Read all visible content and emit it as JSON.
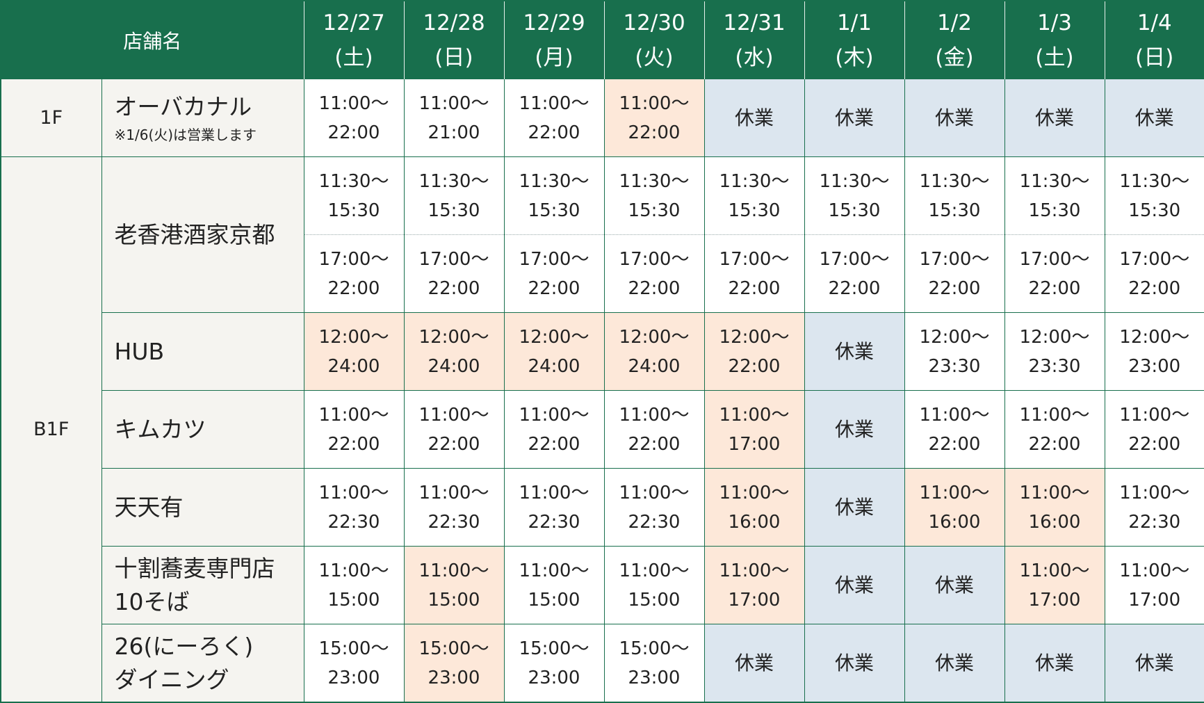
{
  "header": {
    "store_label": "店舗名"
  },
  "dates": [
    {
      "date": "12/27",
      "dow": "(土)"
    },
    {
      "date": "12/28",
      "dow": "(日)"
    },
    {
      "date": "12/29",
      "dow": "(月)"
    },
    {
      "date": "12/30",
      "dow": "(火)"
    },
    {
      "date": "12/31",
      "dow": "(水)"
    },
    {
      "date": "1/1",
      "dow": "(木)"
    },
    {
      "date": "1/2",
      "dow": "(金)"
    },
    {
      "date": "1/3",
      "dow": "(土)"
    },
    {
      "date": "1/4",
      "dow": "(日)"
    }
  ],
  "colors": {
    "header": "#186f4d",
    "special": "#fde8d9",
    "closed": "#dce6ef",
    "label_bg": "#f5f4f0"
  },
  "floors": [
    {
      "floor": "1F",
      "stores": [
        {
          "name": "オーバカナル",
          "note": "※1/6(火)は営業します",
          "slots": [
            [
              {
                "s": "normal",
                "t": [
                  "11:00～",
                  "22:00"
                ]
              },
              {
                "s": "normal",
                "t": [
                  "11:00～",
                  "21:00"
                ]
              },
              {
                "s": "normal",
                "t": [
                  "11:00～",
                  "22:00"
                ]
              },
              {
                "s": "special",
                "t": [
                  "11:00～",
                  "22:00"
                ]
              },
              {
                "s": "closed",
                "t": [
                  "休業"
                ]
              },
              {
                "s": "closed",
                "t": [
                  "休業"
                ]
              },
              {
                "s": "closed",
                "t": [
                  "休業"
                ]
              },
              {
                "s": "closed",
                "t": [
                  "休業"
                ]
              },
              {
                "s": "closed",
                "t": [
                  "休業"
                ]
              }
            ]
          ]
        }
      ]
    },
    {
      "floor": "B1F",
      "stores": [
        {
          "name": "老香港酒家京都",
          "slots": [
            [
              {
                "s": "normal",
                "t": [
                  "11:30～",
                  "15:30"
                ]
              },
              {
                "s": "normal",
                "t": [
                  "11:30～",
                  "15:30"
                ]
              },
              {
                "s": "normal",
                "t": [
                  "11:30～",
                  "15:30"
                ]
              },
              {
                "s": "normal",
                "t": [
                  "11:30～",
                  "15:30"
                ]
              },
              {
                "s": "normal",
                "t": [
                  "11:30～",
                  "15:30"
                ]
              },
              {
                "s": "normal",
                "t": [
                  "11:30～",
                  "15:30"
                ]
              },
              {
                "s": "normal",
                "t": [
                  "11:30～",
                  "15:30"
                ]
              },
              {
                "s": "normal",
                "t": [
                  "11:30～",
                  "15:30"
                ]
              },
              {
                "s": "normal",
                "t": [
                  "11:30～",
                  "15:30"
                ]
              }
            ],
            [
              {
                "s": "normal",
                "t": [
                  "17:00～",
                  "22:00"
                ]
              },
              {
                "s": "normal",
                "t": [
                  "17:00～",
                  "22:00"
                ]
              },
              {
                "s": "normal",
                "t": [
                  "17:00～",
                  "22:00"
                ]
              },
              {
                "s": "normal",
                "t": [
                  "17:00～",
                  "22:00"
                ]
              },
              {
                "s": "normal",
                "t": [
                  "17:00～",
                  "22:00"
                ]
              },
              {
                "s": "normal",
                "t": [
                  "17:00～",
                  "22:00"
                ]
              },
              {
                "s": "normal",
                "t": [
                  "17:00～",
                  "22:00"
                ]
              },
              {
                "s": "normal",
                "t": [
                  "17:00～",
                  "22:00"
                ]
              },
              {
                "s": "normal",
                "t": [
                  "17:00～",
                  "22:00"
                ]
              }
            ]
          ]
        },
        {
          "name": "HUB",
          "slots": [
            [
              {
                "s": "special",
                "t": [
                  "12:00～",
                  "24:00"
                ]
              },
              {
                "s": "special",
                "t": [
                  "12:00～",
                  "24:00"
                ]
              },
              {
                "s": "special",
                "t": [
                  "12:00～",
                  "24:00"
                ]
              },
              {
                "s": "special",
                "t": [
                  "12:00～",
                  "24:00"
                ]
              },
              {
                "s": "special",
                "t": [
                  "12:00～",
                  "22:00"
                ]
              },
              {
                "s": "closed",
                "t": [
                  "休業"
                ]
              },
              {
                "s": "normal",
                "t": [
                  "12:00～",
                  "23:30"
                ]
              },
              {
                "s": "normal",
                "t": [
                  "12:00～",
                  "23:30"
                ]
              },
              {
                "s": "normal",
                "t": [
                  "12:00～",
                  "23:00"
                ]
              }
            ]
          ]
        },
        {
          "name": "キムカツ",
          "slots": [
            [
              {
                "s": "normal",
                "t": [
                  "11:00～",
                  "22:00"
                ]
              },
              {
                "s": "normal",
                "t": [
                  "11:00～",
                  "22:00"
                ]
              },
              {
                "s": "normal",
                "t": [
                  "11:00～",
                  "22:00"
                ]
              },
              {
                "s": "normal",
                "t": [
                  "11:00～",
                  "22:00"
                ]
              },
              {
                "s": "special",
                "t": [
                  "11:00～",
                  "17:00"
                ]
              },
              {
                "s": "closed",
                "t": [
                  "休業"
                ]
              },
              {
                "s": "normal",
                "t": [
                  "11:00～",
                  "22:00"
                ]
              },
              {
                "s": "normal",
                "t": [
                  "11:00～",
                  "22:00"
                ]
              },
              {
                "s": "normal",
                "t": [
                  "11:00～",
                  "22:00"
                ]
              }
            ]
          ]
        },
        {
          "name": "天天有",
          "slots": [
            [
              {
                "s": "normal",
                "t": [
                  "11:00～",
                  "22:30"
                ]
              },
              {
                "s": "normal",
                "t": [
                  "11:00～",
                  "22:30"
                ]
              },
              {
                "s": "normal",
                "t": [
                  "11:00～",
                  "22:30"
                ]
              },
              {
                "s": "normal",
                "t": [
                  "11:00～",
                  "22:30"
                ]
              },
              {
                "s": "special",
                "t": [
                  "11:00～",
                  "16:00"
                ]
              },
              {
                "s": "closed",
                "t": [
                  "休業"
                ]
              },
              {
                "s": "special",
                "t": [
                  "11:00～",
                  "16:00"
                ]
              },
              {
                "s": "special",
                "t": [
                  "11:00～",
                  "16:00"
                ]
              },
              {
                "s": "normal",
                "t": [
                  "11:00～",
                  "22:30"
                ]
              }
            ]
          ]
        },
        {
          "name": "十割蕎麦専門店",
          "name2": "10そば",
          "slots": [
            [
              {
                "s": "normal",
                "t": [
                  "11:00～",
                  "15:00"
                ]
              },
              {
                "s": "special",
                "t": [
                  "11:00～",
                  "15:00"
                ]
              },
              {
                "s": "normal",
                "t": [
                  "11:00～",
                  "15:00"
                ]
              },
              {
                "s": "normal",
                "t": [
                  "11:00～",
                  "15:00"
                ]
              },
              {
                "s": "special",
                "t": [
                  "11:00～",
                  "17:00"
                ]
              },
              {
                "s": "closed",
                "t": [
                  "休業"
                ]
              },
              {
                "s": "closed",
                "t": [
                  "休業"
                ]
              },
              {
                "s": "special",
                "t": [
                  "11:00～",
                  "17:00"
                ]
              },
              {
                "s": "normal",
                "t": [
                  "11:00～",
                  "17:00"
                ]
              }
            ]
          ]
        },
        {
          "name": "26(にーろく)",
          "name2": "ダイニング",
          "slots": [
            [
              {
                "s": "normal",
                "t": [
                  "15:00～",
                  "23:00"
                ]
              },
              {
                "s": "special",
                "t": [
                  "15:00～",
                  "23:00"
                ]
              },
              {
                "s": "normal",
                "t": [
                  "15:00～",
                  "23:00"
                ]
              },
              {
                "s": "normal",
                "t": [
                  "15:00～",
                  "23:00"
                ]
              },
              {
                "s": "closed",
                "t": [
                  "休業"
                ]
              },
              {
                "s": "closed",
                "t": [
                  "休業"
                ]
              },
              {
                "s": "closed",
                "t": [
                  "休業"
                ]
              },
              {
                "s": "closed",
                "t": [
                  "休業"
                ]
              },
              {
                "s": "closed",
                "t": [
                  "休業"
                ]
              }
            ]
          ]
        }
      ]
    }
  ]
}
